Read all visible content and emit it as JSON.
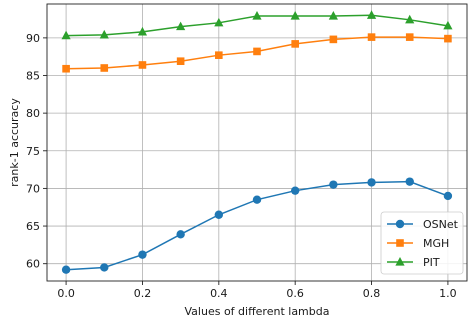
{
  "chart_data": {
    "type": "line",
    "title": "",
    "xlabel": "Values of different lambda",
    "ylabel": "rank-1 accuracy",
    "x": [
      0.0,
      0.1,
      0.2,
      0.3,
      0.4,
      0.5,
      0.6,
      0.7,
      0.8,
      0.9,
      1.0
    ],
    "xlim": [
      -0.05,
      1.05
    ],
    "ylim": [
      57.7,
      94.5
    ],
    "xticks": [
      0.0,
      0.2,
      0.4,
      0.6,
      0.8,
      1.0
    ],
    "xtick_labels": [
      "0.0",
      "0.2",
      "0.4",
      "0.6",
      "0.8",
      "1.0"
    ],
    "yticks": [
      60,
      65,
      70,
      75,
      80,
      85,
      90
    ],
    "ytick_labels": [
      "60",
      "65",
      "70",
      "75",
      "80",
      "85",
      "90"
    ],
    "grid": true,
    "legend_position": "bottom-right",
    "series": [
      {
        "name": "OSNet",
        "marker": "circle",
        "color": "#1f77b4",
        "values": [
          59.2,
          59.5,
          61.2,
          63.9,
          66.5,
          68.5,
          69.7,
          70.5,
          70.8,
          70.9,
          69.0
        ]
      },
      {
        "name": "MGH",
        "marker": "square",
        "color": "#ff7f0e",
        "values": [
          85.9,
          86.0,
          86.4,
          86.9,
          87.7,
          88.2,
          89.2,
          89.8,
          90.1,
          90.1,
          89.9
        ]
      },
      {
        "name": "PIT",
        "marker": "triangle",
        "color": "#2ca02c",
        "values": [
          90.3,
          90.4,
          90.8,
          91.5,
          92.0,
          92.9,
          92.9,
          92.9,
          93.0,
          92.4,
          91.6
        ]
      }
    ]
  }
}
